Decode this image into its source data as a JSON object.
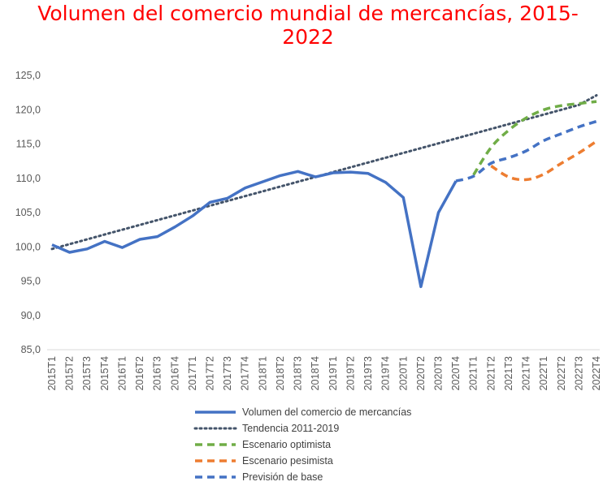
{
  "title": "Volumen del comercio mundial de mercancías, 2015-2022",
  "title_line1": "Volumen del comercio mundial de mercancías, 2015-",
  "title_line2": "2022",
  "colors": {
    "title": "#ff0000",
    "actual": "#4472c4",
    "trend": "#44546a",
    "optimistic": "#70ad47",
    "pessimistic": "#ed7d31",
    "baseline": "#4472c4",
    "axis": "#d9d9d9",
    "tick_text": "#595959"
  },
  "chart_data": {
    "type": "line",
    "title": "Volumen del comercio mundial de mercancías, 2015-2022",
    "xlabel": "",
    "ylabel": "",
    "ylim": [
      85,
      125
    ],
    "yticks": [
      "85,0",
      "90,0",
      "95,0",
      "100,0",
      "105,0",
      "110,0",
      "115,0",
      "120,0",
      "125,0"
    ],
    "grid": false,
    "legend_position": "bottom",
    "categories": [
      "2015T1",
      "2015T2",
      "2015T3",
      "2015T4",
      "2016T1",
      "2016T2",
      "2016T3",
      "2016T4",
      "2017T1",
      "2017T2",
      "2017T3",
      "2017T4",
      "2018T1",
      "2018T2",
      "2018T3",
      "2018T4",
      "2019T1",
      "2019T2",
      "2019T3",
      "2019T4",
      "2020T1",
      "2020T2",
      "2020T3",
      "2020T4",
      "2021T1",
      "2021T2",
      "2021T3",
      "2021T4",
      "2022T1",
      "2022T2",
      "2022T3",
      "2022T4"
    ],
    "series": [
      {
        "name": "Volumen del comercio de mercancías",
        "style": "solid",
        "color": "#4472c4",
        "values": [
          100.3,
          99.2,
          99.7,
          100.8,
          99.9,
          101.1,
          101.5,
          102.9,
          104.5,
          106.5,
          107.1,
          108.6,
          109.5,
          110.4,
          111.0,
          110.2,
          110.8,
          110.9,
          110.7,
          109.4,
          107.2,
          94.2,
          105.0,
          109.6,
          null,
          null,
          null,
          null,
          null,
          null,
          null,
          null
        ]
      },
      {
        "name": "Tendencia 2011-2019",
        "style": "dotted",
        "color": "#44546a",
        "values": [
          99.7,
          100.4,
          101.1,
          101.8,
          102.5,
          103.2,
          103.9,
          104.6,
          105.3,
          106.0,
          106.7,
          107.4,
          108.1,
          108.8,
          109.5,
          110.2,
          110.9,
          111.6,
          112.3,
          113.0,
          113.7,
          114.4,
          115.1,
          115.8,
          116.5,
          117.2,
          117.9,
          118.6,
          119.3,
          120.0,
          120.7,
          122.1
        ]
      },
      {
        "name": "Escenario optimista",
        "style": "dashed",
        "color": "#70ad47",
        "values": [
          null,
          null,
          null,
          null,
          null,
          null,
          null,
          null,
          null,
          null,
          null,
          null,
          null,
          null,
          null,
          null,
          null,
          null,
          null,
          null,
          null,
          null,
          null,
          null,
          110.5,
          114.5,
          117.0,
          118.8,
          120.0,
          120.6,
          120.9,
          121.2
        ]
      },
      {
        "name": "Escenario pesimista",
        "style": "dashed",
        "color": "#ed7d31",
        "values": [
          null,
          null,
          null,
          null,
          null,
          null,
          null,
          null,
          null,
          null,
          null,
          null,
          null,
          null,
          null,
          null,
          null,
          null,
          null,
          null,
          null,
          null,
          null,
          null,
          null,
          111.8,
          110.2,
          109.8,
          110.6,
          112.2,
          113.7,
          115.4
        ]
      },
      {
        "name": "Previsión de base",
        "style": "dashed",
        "color": "#4472c4",
        "values": [
          null,
          null,
          null,
          null,
          null,
          null,
          null,
          null,
          null,
          null,
          null,
          null,
          null,
          null,
          null,
          null,
          null,
          null,
          null,
          null,
          null,
          null,
          null,
          109.6,
          110.3,
          112.2,
          113.0,
          114.0,
          115.5,
          116.5,
          117.5,
          118.3
        ]
      }
    ]
  }
}
